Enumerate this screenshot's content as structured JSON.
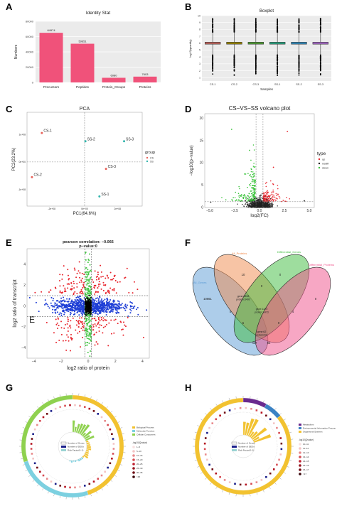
{
  "panels": {
    "A": {
      "label": "A"
    },
    "B": {
      "label": "B"
    },
    "C": {
      "label": "C"
    },
    "D": {
      "label": "D"
    },
    "E": {
      "label": "E"
    },
    "F": {
      "label": "F"
    },
    "G": {
      "label": "G"
    },
    "H": {
      "label": "H"
    }
  },
  "colors": {
    "bar": "#f0527a",
    "up": "#e8262e",
    "down": "#39c33a",
    "nodiff": "#222222",
    "e_red": "#e8262e",
    "e_blue": "#1f3fd6",
    "e_green": "#4ac84a",
    "venn_blue": "#5b9bd5",
    "venn_orange": "#f08a4b",
    "venn_green": "#3dbb3d",
    "venn_pink": "#f0508a"
  },
  "chart_data": [
    {
      "id": "A",
      "type": "bar",
      "title": "Identity Stat",
      "ylabel": "Numbers",
      "categories": [
        "Precursors",
        "Peptides",
        "Protein_Groups",
        "Proteins"
      ],
      "values": [
        64974,
        50651,
        6080,
        7603
      ],
      "value_labels": [
        "64974",
        "50651",
        "6080",
        "7603"
      ],
      "ylim": [
        0,
        80000
      ],
      "yticks": [
        "0",
        "20000",
        "40000",
        "60000",
        "80000"
      ]
    },
    {
      "id": "B",
      "type": "box",
      "title": "Boxplot",
      "xlabel": "Samples",
      "ylabel": "log10(quantity)",
      "categories": [
        "CS-1",
        "CS-2",
        "CS-3",
        "SS-1",
        "SS-2",
        "SS-3"
      ],
      "colors": [
        "#e8796f",
        "#b79f00",
        "#5dbb3b",
        "#2fc39a",
        "#3aa6e0",
        "#c77cf0"
      ],
      "q1": [
        5.85,
        5.85,
        5.85,
        5.85,
        5.85,
        5.85
      ],
      "median": [
        6.0,
        6.0,
        6.0,
        6.0,
        6.0,
        6.0
      ],
      "q3": [
        6.15,
        6.15,
        6.15,
        6.15,
        6.15,
        6.15
      ],
      "whisker_low": [
        4.3,
        4.3,
        4.3,
        4.3,
        4.3,
        4.3
      ],
      "whisker_high": [
        7.6,
        7.6,
        7.6,
        7.6,
        7.6,
        7.6
      ],
      "outlier_low": 1.2,
      "outlier_high": 9.6,
      "ylim": [
        0.5,
        10
      ],
      "yticks": [
        "1",
        "2",
        "3",
        "4",
        "5",
        "6",
        "7",
        "8",
        "9",
        "10"
      ]
    },
    {
      "id": "C",
      "type": "scatter",
      "title": "PCA",
      "xlabel": "PC1(64.6%)",
      "ylabel": "PC2(23.2%)",
      "xlim": [
        -3.5,
        3.5
      ],
      "ylim": [
        -1.6,
        1.8
      ],
      "xticks": [
        {
          "v": -2,
          "t": "-2e+08"
        },
        {
          "v": 0,
          "t": "0e+00"
        },
        {
          "v": 2,
          "t": "2e+08"
        }
      ],
      "yticks": [
        {
          "v": 1,
          "t": "1e+08"
        },
        {
          "v": 0,
          "t": "0e+00"
        },
        {
          "v": -1,
          "t": "-1e+08"
        }
      ],
      "legend_title": "group",
      "legend": [
        "CS",
        "SS"
      ],
      "points": [
        {
          "label": "CS-1",
          "x": -2.6,
          "y": 1.05,
          "group": "CS"
        },
        {
          "label": "CS-2",
          "x": -3.2,
          "y": -0.55,
          "group": "CS"
        },
        {
          "label": "CS-3",
          "x": 1.3,
          "y": -0.25,
          "group": "CS"
        },
        {
          "label": "SS-1",
          "x": 0.9,
          "y": -1.25,
          "group": "SS"
        },
        {
          "label": "SS-2",
          "x": 0.05,
          "y": 0.75,
          "group": "SS"
        },
        {
          "label": "SS-3",
          "x": 2.4,
          "y": 0.75,
          "group": "SS"
        }
      ]
    },
    {
      "id": "D",
      "type": "scatter",
      "title": "CS−VS−SS volcano plot",
      "xlabel": "log2(FC)",
      "ylabel": "−log10(p−value)",
      "xlim": [
        -5.5,
        5.5
      ],
      "ylim": [
        0,
        21
      ],
      "xticks": [
        "−5.0",
        "−2.5",
        "0.0",
        "2.5",
        "5.0"
      ],
      "yticks": [
        "0",
        "5",
        "10",
        "15",
        "20"
      ],
      "legend_title": "type",
      "legend": [
        "up",
        "nodiff",
        "down"
      ]
    },
    {
      "id": "E",
      "type": "scatter",
      "title": "pearson correlation: −0.066",
      "subtitle": "p−value:0",
      "xlabel": "log2 ratio of protein",
      "ylabel": "log2 ratio of transcript",
      "xlim": [
        -4.5,
        4.5
      ],
      "ylim": [
        -5,
        5.5
      ],
      "xticks": [
        "−4",
        "−2",
        "0",
        "2",
        "4"
      ],
      "yticks": [
        "4",
        "2",
        "0",
        "−2",
        "−4"
      ],
      "annotation": "E"
    },
    {
      "id": "F",
      "type": "venn",
      "sets": [
        "All_Genes",
        "All_Proteins",
        "Differential_Genes",
        "Differential_Proteins"
      ],
      "numbers": [
        "10661",
        "10",
        "0",
        "0",
        "0",
        "0",
        "4",
        "0",
        "5",
        "437",
        "83"
      ],
      "gene_labels": [
        "gene:6398\nprotein:6400",
        "gene:1470\nprotein:1473",
        "gene:62\nprotein:62"
      ]
    },
    {
      "id": "G",
      "type": "circular",
      "legend": [
        "Biological Process",
        "Molecular Function",
        "Cellular Component"
      ],
      "center_legend": [
        "Number of Genes",
        "Number of DEGs",
        "Rich Factor(0−1)"
      ],
      "scale_title": "-log10(Qvalue)",
      "scale_labels": [
        "1−5",
        "5−10",
        "10−15",
        "15−20",
        "20−25",
        "25−30",
        "30−35",
        ">35"
      ]
    },
    {
      "id": "H",
      "type": "circular",
      "legend": [
        "Metabolism",
        "Environmental Information Processing",
        "Organismal Systems"
      ],
      "center_legend": [
        "Number of Genes",
        "Number of DEGs",
        "Rich Factor(0−1)"
      ],
      "scale_title": "-log10(Qvalue)",
      "scale_labels": [
        "10−11",
        "11−12",
        "12−13",
        "13−14",
        "14−15",
        "15−16",
        "16−17",
        ">17"
      ]
    }
  ]
}
